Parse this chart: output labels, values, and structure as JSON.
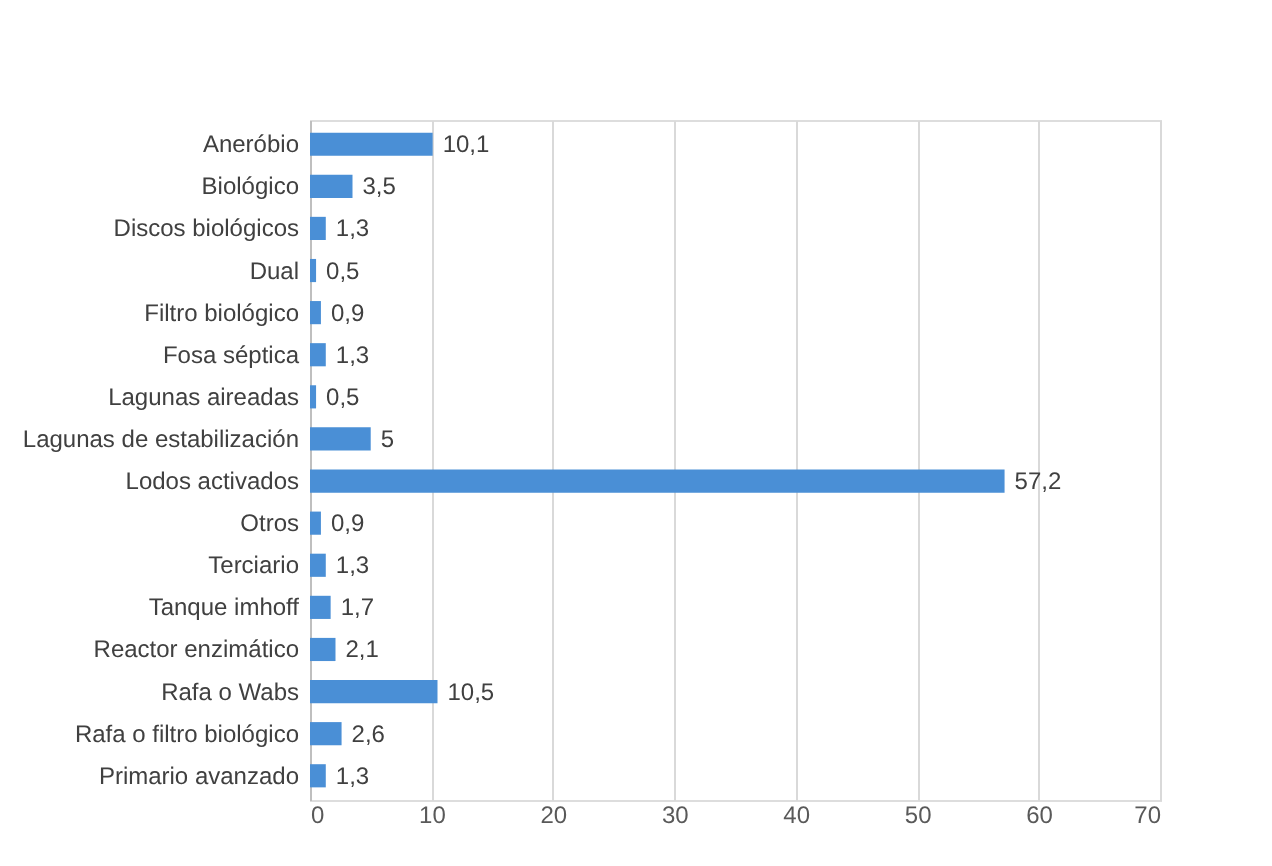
{
  "chart_data": {
    "type": "bar",
    "orientation": "horizontal",
    "categories": [
      "Aneróbio",
      "Biológico",
      "Discos biológicos",
      "Dual",
      "Filtro biológico",
      "Fosa séptica",
      "Lagunas aireadas",
      "Lagunas de estabilización",
      "Lodos activados",
      "Otros",
      "Terciario",
      "Tanque imhoff",
      "Reactor enzimático",
      "Rafa o Wabs",
      "Rafa o filtro biológico",
      "Primario avanzado"
    ],
    "values": [
      10.1,
      3.5,
      1.3,
      0.5,
      0.9,
      1.3,
      0.5,
      5,
      57.2,
      0.9,
      1.3,
      1.7,
      2.1,
      10.5,
      2.6,
      1.3
    ],
    "value_labels": [
      "10,1",
      "3,5",
      "1,3",
      "0,5",
      "0,9",
      "1,3",
      "0,5",
      "5",
      "57,2",
      "0,9",
      "1,3",
      "1,7",
      "2,1",
      "10,5",
      "2,6",
      "1,3"
    ],
    "color": "#4a8fd6",
    "xlim": [
      0,
      70
    ],
    "xticks": [
      0,
      10,
      20,
      30,
      40,
      50,
      60,
      70
    ],
    "grid": "x"
  }
}
